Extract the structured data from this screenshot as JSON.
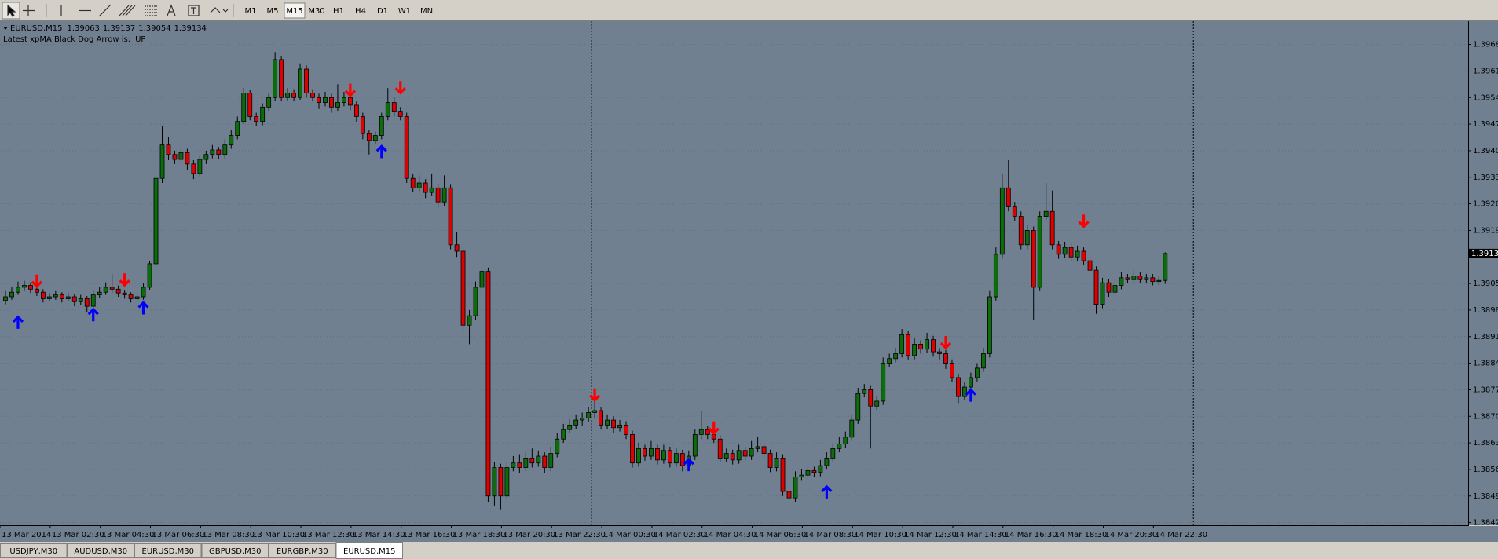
{
  "toolbar": {
    "timeframes": [
      "M1",
      "M5",
      "M15",
      "M30",
      "H1",
      "H4",
      "D1",
      "W1",
      "MN"
    ],
    "active_timeframe": 2
  },
  "chart_data": {
    "type": "candlestick",
    "symbol": "EURUSD,M15",
    "indicator_label": "Latest xpMA Black Dog Arrow is:",
    "indicator_value": "UP",
    "up_color": "#0b6e0b",
    "down_color": "#e00000",
    "background": "#708090",
    "grid": true,
    "ylim": [
      1.3842,
      1.3974
    ],
    "yticks": [
      1.38425,
      1.38495,
      1.38565,
      1.38635,
      1.38705,
      1.38775,
      1.38845,
      1.38915,
      1.38985,
      1.39055,
      1.39195,
      1.39265,
      1.39335,
      1.39405,
      1.39475,
      1.39545,
      1.39615,
      1.39685
    ],
    "x_labels": [
      "13 Mar 2014",
      "13 Mar 02:30",
      "13 Mar 04:30",
      "13 Mar 06:30",
      "13 Mar 08:30",
      "13 Mar 10:30",
      "13 Mar 12:30",
      "13 Mar 14:30",
      "13 Mar 16:30",
      "13 Mar 18:30",
      "13 Mar 20:30",
      "13 Mar 22:30",
      "14 Mar 00:30",
      "14 Mar 02:30",
      "14 Mar 04:30",
      "14 Mar 06:30",
      "14 Mar 08:30",
      "14 Mar 10:30",
      "14 Mar 12:30",
      "14 Mar 14:30",
      "14 Mar 16:30",
      "14 Mar 18:30",
      "14 Mar 20:30",
      "14 Mar 22:30"
    ],
    "ohlc": [
      [
        1.3901,
        1.39035,
        1.39,
        1.3902
      ],
      [
        1.3902,
        1.39045,
        1.39012,
        1.39032
      ],
      [
        1.39032,
        1.3906,
        1.39025,
        1.39045
      ],
      [
        1.39045,
        1.39062,
        1.39035,
        1.3905
      ],
      [
        1.3905,
        1.39058,
        1.3903,
        1.3904
      ],
      [
        1.3904,
        1.39048,
        1.39022,
        1.39032
      ],
      [
        1.39032,
        1.3904,
        1.39005,
        1.39015
      ],
      [
        1.39015,
        1.3903,
        1.39008,
        1.3902
      ],
      [
        1.3902,
        1.39035,
        1.39012,
        1.39025
      ],
      [
        1.39025,
        1.39032,
        1.39005,
        1.39015
      ],
      [
        1.39015,
        1.3903,
        1.39008,
        1.3902
      ],
      [
        1.3902,
        1.39028,
        1.38995,
        1.39007
      ],
      [
        1.39007,
        1.39025,
        1.38998,
        1.39015
      ],
      [
        1.39015,
        1.39022,
        1.3898,
        1.38995
      ],
      [
        1.38995,
        1.39035,
        1.38988,
        1.39025
      ],
      [
        1.39025,
        1.39045,
        1.39018,
        1.39032
      ],
      [
        1.39032,
        1.39058,
        1.39025,
        1.39045
      ],
      [
        1.39045,
        1.3908,
        1.3903,
        1.3904
      ],
      [
        1.3904,
        1.3905,
        1.3902,
        1.3903
      ],
      [
        1.3903,
        1.39038,
        1.39015,
        1.39025
      ],
      [
        1.39025,
        1.39032,
        1.39005,
        1.39015
      ],
      [
        1.39015,
        1.3903,
        1.39008,
        1.3902
      ],
      [
        1.3902,
        1.39055,
        1.39012,
        1.39045
      ],
      [
        1.39045,
        1.39115,
        1.39038,
        1.39107
      ],
      [
        1.39107,
        1.39345,
        1.391,
        1.39332
      ],
      [
        1.39332,
        1.3947,
        1.3932,
        1.3942
      ],
      [
        1.3942,
        1.3944,
        1.3938,
        1.39395
      ],
      [
        1.39395,
        1.39405,
        1.3937,
        1.39382
      ],
      [
        1.39382,
        1.39415,
        1.39372,
        1.394
      ],
      [
        1.394,
        1.3941,
        1.39355,
        1.3937
      ],
      [
        1.3937,
        1.3938,
        1.3933,
        1.39345
      ],
      [
        1.39345,
        1.39392,
        1.39335,
        1.39382
      ],
      [
        1.39382,
        1.39405,
        1.3937,
        1.39395
      ],
      [
        1.39395,
        1.3942,
        1.39385,
        1.39407
      ],
      [
        1.39407,
        1.39415,
        1.39382,
        1.39395
      ],
      [
        1.39395,
        1.39435,
        1.39385,
        1.3942
      ],
      [
        1.3942,
        1.3946,
        1.3941,
        1.39445
      ],
      [
        1.39445,
        1.39495,
        1.39435,
        1.39482
      ],
      [
        1.39482,
        1.3957,
        1.39475,
        1.39557
      ],
      [
        1.39557,
        1.39565,
        1.39485,
        1.39495
      ],
      [
        1.39495,
        1.39505,
        1.3947,
        1.39482
      ],
      [
        1.39482,
        1.3953,
        1.39472,
        1.3952
      ],
      [
        1.3952,
        1.39555,
        1.3951,
        1.39545
      ],
      [
        1.39545,
        1.39665,
        1.39535,
        1.39645
      ],
      [
        1.39645,
        1.39655,
        1.39535,
        1.39545
      ],
      [
        1.39545,
        1.3957,
        1.39535,
        1.39557
      ],
      [
        1.39557,
        1.39567,
        1.39535,
        1.39545
      ],
      [
        1.39545,
        1.39635,
        1.39538,
        1.3962
      ],
      [
        1.3962,
        1.3963,
        1.39545,
        1.39557
      ],
      [
        1.39557,
        1.39567,
        1.39535,
        1.39545
      ],
      [
        1.39545,
        1.39555,
        1.39515,
        1.39532
      ],
      [
        1.39532,
        1.3956,
        1.39522,
        1.39545
      ],
      [
        1.39545,
        1.39555,
        1.39505,
        1.3952
      ],
      [
        1.3952,
        1.3958,
        1.3951,
        1.39532
      ],
      [
        1.39532,
        1.3956,
        1.39522,
        1.39545
      ],
      [
        1.39545,
        1.39555,
        1.39512,
        1.39525
      ],
      [
        1.39525,
        1.39535,
        1.3948,
        1.39495
      ],
      [
        1.39495,
        1.39505,
        1.39435,
        1.3945
      ],
      [
        1.3945,
        1.3946,
        1.39395,
        1.39432
      ],
      [
        1.39432,
        1.39455,
        1.39422,
        1.39445
      ],
      [
        1.39445,
        1.39505,
        1.39435,
        1.39495
      ],
      [
        1.39495,
        1.3957,
        1.39485,
        1.39532
      ],
      [
        1.39532,
        1.39545,
        1.39495,
        1.39507
      ],
      [
        1.39507,
        1.3952,
        1.39485,
        1.39495
      ],
      [
        1.39495,
        1.39505,
        1.3932,
        1.39332
      ],
      [
        1.39332,
        1.39345,
        1.39295,
        1.39307
      ],
      [
        1.39307,
        1.3934,
        1.39298,
        1.3932
      ],
      [
        1.3932,
        1.3933,
        1.3928,
        1.39295
      ],
      [
        1.39295,
        1.39345,
        1.39285,
        1.39307
      ],
      [
        1.39307,
        1.39318,
        1.39255,
        1.3927
      ],
      [
        1.3927,
        1.3934,
        1.3926,
        1.39307
      ],
      [
        1.39307,
        1.39317,
        1.39145,
        1.39157
      ],
      [
        1.39157,
        1.3919,
        1.39125,
        1.3914
      ],
      [
        1.3914,
        1.3915,
        1.3893,
        1.38945
      ],
      [
        1.38945,
        1.38985,
        1.38895,
        1.3897
      ],
      [
        1.3897,
        1.3906,
        1.3896,
        1.39045
      ],
      [
        1.39045,
        1.391,
        1.39035,
        1.39087
      ],
      [
        1.39087,
        1.39097,
        1.3848,
        1.38495
      ],
      [
        1.38495,
        1.38585,
        1.3847,
        1.3857
      ],
      [
        1.3857,
        1.3858,
        1.3846,
        1.38495
      ],
      [
        1.38495,
        1.38585,
        1.38485,
        1.3857
      ],
      [
        1.3857,
        1.386,
        1.3856,
        1.38582
      ],
      [
        1.38582,
        1.38605,
        1.38555,
        1.3857
      ],
      [
        1.3857,
        1.3861,
        1.3856,
        1.38595
      ],
      [
        1.38595,
        1.3862,
        1.3857,
        1.38582
      ],
      [
        1.38582,
        1.38615,
        1.38572,
        1.386
      ],
      [
        1.386,
        1.3861,
        1.38555,
        1.3857
      ],
      [
        1.3857,
        1.38625,
        1.3856,
        1.38607
      ],
      [
        1.38607,
        1.3866,
        1.38597,
        1.38645
      ],
      [
        1.38645,
        1.38685,
        1.38635,
        1.3867
      ],
      [
        1.3867,
        1.38698,
        1.3866,
        1.38682
      ],
      [
        1.38682,
        1.3871,
        1.38672,
        1.38695
      ],
      [
        1.38695,
        1.38715,
        1.3868,
        1.387
      ],
      [
        1.387,
        1.3873,
        1.3869,
        1.38715
      ],
      [
        1.38715,
        1.3876,
        1.387,
        1.3872
      ],
      [
        1.3872,
        1.3873,
        1.3867,
        1.38682
      ],
      [
        1.38682,
        1.3871,
        1.38672,
        1.38695
      ],
      [
        1.38695,
        1.38705,
        1.3866,
        1.38675
      ],
      [
        1.38675,
        1.38695,
        1.38665,
        1.38682
      ],
      [
        1.38682,
        1.38692,
        1.38645,
        1.38657
      ],
      [
        1.38657,
        1.38667,
        1.3857,
        1.38582
      ],
      [
        1.38582,
        1.38635,
        1.38572,
        1.3862
      ],
      [
        1.3862,
        1.3863,
        1.38588,
        1.386
      ],
      [
        1.386,
        1.3864,
        1.3859,
        1.3862
      ],
      [
        1.3862,
        1.3863,
        1.38578,
        1.3859
      ],
      [
        1.3859,
        1.3863,
        1.3858,
        1.38615
      ],
      [
        1.38615,
        1.38625,
        1.3857,
        1.38582
      ],
      [
        1.38582,
        1.3862,
        1.38572,
        1.38607
      ],
      [
        1.38607,
        1.38617,
        1.3856,
        1.38575
      ],
      [
        1.38575,
        1.38615,
        1.38565,
        1.386
      ],
      [
        1.386,
        1.3867,
        1.3859,
        1.38657
      ],
      [
        1.38657,
        1.3872,
        1.38645,
        1.3867
      ],
      [
        1.3867,
        1.3868,
        1.38645,
        1.38657
      ],
      [
        1.38657,
        1.3868,
        1.38635,
        1.38645
      ],
      [
        1.38645,
        1.38655,
        1.38585,
        1.38595
      ],
      [
        1.38595,
        1.3862,
        1.38585,
        1.38607
      ],
      [
        1.38607,
        1.38617,
        1.38578,
        1.3859
      ],
      [
        1.3859,
        1.3863,
        1.3858,
        1.38615
      ],
      [
        1.38615,
        1.38625,
        1.38588,
        1.386
      ],
      [
        1.386,
        1.3864,
        1.3859,
        1.3862
      ],
      [
        1.3862,
        1.3865,
        1.3861,
        1.38625
      ],
      [
        1.38625,
        1.38635,
        1.38595,
        1.38607
      ],
      [
        1.38607,
        1.38617,
        1.38558,
        1.3857
      ],
      [
        1.3857,
        1.3861,
        1.3856,
        1.38595
      ],
      [
        1.38595,
        1.38605,
        1.38495,
        1.38507
      ],
      [
        1.38507,
        1.38517,
        1.3847,
        1.3849
      ],
      [
        1.3849,
        1.3856,
        1.3848,
        1.38545
      ],
      [
        1.38545,
        1.38565,
        1.38535,
        1.3855
      ],
      [
        1.3855,
        1.38575,
        1.3854,
        1.38562
      ],
      [
        1.38562,
        1.38572,
        1.38545,
        1.38557
      ],
      [
        1.38557,
        1.3859,
        1.38547,
        1.38575
      ],
      [
        1.38575,
        1.3861,
        1.38565,
        1.38595
      ],
      [
        1.38595,
        1.38635,
        1.38585,
        1.3862
      ],
      [
        1.3862,
        1.3865,
        1.3861,
        1.38632
      ],
      [
        1.38632,
        1.38665,
        1.38622,
        1.3865
      ],
      [
        1.3865,
        1.3871,
        1.3864,
        1.38695
      ],
      [
        1.38695,
        1.3878,
        1.38685,
        1.38765
      ],
      [
        1.38765,
        1.3879,
        1.38755,
        1.38775
      ],
      [
        1.38775,
        1.38785,
        1.3862,
        1.38732
      ],
      [
        1.38732,
        1.3876,
        1.38722,
        1.38745
      ],
      [
        1.38745,
        1.3886,
        1.38735,
        1.38845
      ],
      [
        1.38845,
        1.3887,
        1.38835,
        1.38857
      ],
      [
        1.38857,
        1.38885,
        1.38847,
        1.3887
      ],
      [
        1.3887,
        1.38935,
        1.3886,
        1.3892
      ],
      [
        1.3892,
        1.3893,
        1.38855,
        1.38865
      ],
      [
        1.38865,
        1.3891,
        1.38855,
        1.38895
      ],
      [
        1.38895,
        1.38905,
        1.3887,
        1.38882
      ],
      [
        1.38882,
        1.38925,
        1.38872,
        1.38907
      ],
      [
        1.38907,
        1.38917,
        1.38862,
        1.38875
      ],
      [
        1.38875,
        1.38885,
        1.38855,
        1.3887
      ],
      [
        1.3887,
        1.3888,
        1.3883,
        1.38845
      ],
      [
        1.38845,
        1.38855,
        1.38795,
        1.38807
      ],
      [
        1.38807,
        1.38817,
        1.3874,
        1.38757
      ],
      [
        1.38757,
        1.38795,
        1.38747,
        1.38782
      ],
      [
        1.38782,
        1.3882,
        1.38772,
        1.38807
      ],
      [
        1.38807,
        1.38845,
        1.38797,
        1.38832
      ],
      [
        1.38832,
        1.38885,
        1.38822,
        1.3887
      ],
      [
        1.3887,
        1.39035,
        1.3886,
        1.3902
      ],
      [
        1.3902,
        1.3915,
        1.3901,
        1.39132
      ],
      [
        1.39132,
        1.39345,
        1.3912,
        1.39307
      ],
      [
        1.39307,
        1.3938,
        1.39245,
        1.39257
      ],
      [
        1.39257,
        1.3927,
        1.3922,
        1.39232
      ],
      [
        1.39232,
        1.39245,
        1.39145,
        1.39157
      ],
      [
        1.39157,
        1.3921,
        1.39145,
        1.39195
      ],
      [
        1.39195,
        1.39205,
        1.3896,
        1.39045
      ],
      [
        1.39045,
        1.39245,
        1.39035,
        1.39232
      ],
      [
        1.39232,
        1.3932,
        1.39222,
        1.39245
      ],
      [
        1.39245,
        1.393,
        1.39145,
        1.39157
      ],
      [
        1.39157,
        1.39167,
        1.3912,
        1.39132
      ],
      [
        1.39132,
        1.39165,
        1.39122,
        1.3915
      ],
      [
        1.3915,
        1.3916,
        1.39115,
        1.39125
      ],
      [
        1.39125,
        1.39155,
        1.39115,
        1.3914
      ],
      [
        1.3914,
        1.3915,
        1.39105,
        1.39115
      ],
      [
        1.39115,
        1.39135,
        1.3908,
        1.3909
      ],
      [
        1.3909,
        1.391,
        1.38975,
        1.39
      ],
      [
        1.39,
        1.3907,
        1.3899,
        1.39057
      ],
      [
        1.39057,
        1.39067,
        1.3902,
        1.39032
      ],
      [
        1.39032,
        1.39065,
        1.39022,
        1.3905
      ],
      [
        1.3905,
        1.39085,
        1.3904,
        1.3907
      ],
      [
        1.3907,
        1.3908,
        1.39055,
        1.39065
      ],
      [
        1.39065,
        1.3909,
        1.39055,
        1.39075
      ],
      [
        1.39075,
        1.39085,
        1.39055,
        1.39065
      ],
      [
        1.39065,
        1.3908,
        1.39055,
        1.3907
      ],
      [
        1.3907,
        1.3908,
        1.3905,
        1.3906
      ],
      [
        1.3906,
        1.39075,
        1.3905,
        1.39063
      ],
      [
        1.39063,
        1.39137,
        1.39054,
        1.39134
      ]
    ],
    "up_arrows": {
      "color": "#0000ff",
      "index": [
        2,
        14,
        22,
        60,
        109,
        131,
        154
      ],
      "price": [
        1.38952,
        1.38972,
        1.3899,
        1.39402,
        1.38577,
        1.38505,
        1.3876
      ]
    },
    "down_arrows": {
      "color": "#ff0000",
      "index": [
        5,
        19,
        55,
        63,
        94,
        113,
        150,
        172
      ],
      "price": [
        1.39062,
        1.39065,
        1.39565,
        1.39572,
        1.38762,
        1.38675,
        1.389,
        1.3922
      ]
    }
  },
  "tabs": [
    "USDJPY,M30",
    "AUDUSD,M30",
    "EURUSD,M30",
    "GBPUSD,M30",
    "EURGBP,M30",
    "EURUSD,M15"
  ],
  "active_tab": 5
}
